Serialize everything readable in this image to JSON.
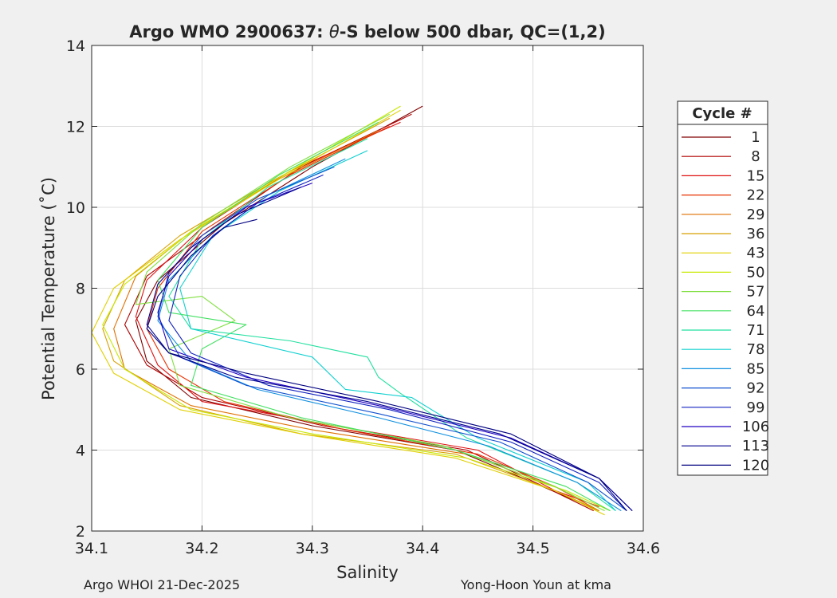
{
  "chart_data": {
    "type": "line",
    "title_prefix": "Argo WMO 2900637: ",
    "title_theta": "θ",
    "title_suffix": "-S below 500 dbar,  QC=(1,2)",
    "xlabel": "Salinity",
    "ylabel": "Potential Temperature (˚C)",
    "xlim": [
      34.1,
      34.6
    ],
    "ylim": [
      2,
      14
    ],
    "xticks": [
      "34.1",
      "34.2",
      "34.3",
      "34.4",
      "34.5",
      "34.6"
    ],
    "yticks": [
      "2",
      "4",
      "6",
      "8",
      "10",
      "12",
      "14"
    ],
    "grid": true,
    "legend": {
      "title": "Cycle #",
      "placement": "right",
      "entries": [
        "1",
        "8",
        "15",
        "22",
        "29",
        "36",
        "43",
        "50",
        "57",
        "64",
        "71",
        "78",
        "85",
        "92",
        "99",
        "106",
        "113",
        "120"
      ],
      "colors": [
        "#800000",
        "#b00000",
        "#e01010",
        "#e83000",
        "#e07000",
        "#d8a000",
        "#e0d000",
        "#c8e800",
        "#80e040",
        "#40e060",
        "#20e0a0",
        "#10d0d0",
        "#1090e0",
        "#1050d0",
        "#1020c0",
        "#2000c0",
        "#000090",
        "#000080"
      ]
    },
    "series": [
      {
        "name": "1",
        "points": [
          [
            34.4,
            12.5
          ],
          [
            34.3,
            11.0
          ],
          [
            34.22,
            9.6
          ],
          [
            34.16,
            8.2
          ],
          [
            34.14,
            7.2
          ],
          [
            34.15,
            6.2
          ],
          [
            34.19,
            5.3
          ],
          [
            34.3,
            4.6
          ],
          [
            34.43,
            4.0
          ],
          [
            34.5,
            3.2
          ],
          [
            34.56,
            2.5
          ]
        ]
      },
      {
        "name": "8",
        "points": [
          [
            34.39,
            12.3
          ],
          [
            34.29,
            11.0
          ],
          [
            34.21,
            9.5
          ],
          [
            34.15,
            8.3
          ],
          [
            34.13,
            7.1
          ],
          [
            34.15,
            6.1
          ],
          [
            34.2,
            5.3
          ],
          [
            34.31,
            4.6
          ],
          [
            34.44,
            4.0
          ],
          [
            34.51,
            3.1
          ],
          [
            34.555,
            2.5
          ]
        ]
      },
      {
        "name": "15",
        "points": [
          [
            34.38,
            12.1
          ],
          [
            34.28,
            10.9
          ],
          [
            34.2,
            9.5
          ],
          [
            34.15,
            8.2
          ],
          [
            34.14,
            7.3
          ],
          [
            34.16,
            6.1
          ],
          [
            34.2,
            5.2
          ],
          [
            34.32,
            4.6
          ],
          [
            34.45,
            4.0
          ],
          [
            34.52,
            3.0
          ],
          [
            34.56,
            2.6
          ]
        ]
      },
      {
        "name": "22",
        "points": [
          [
            34.37,
            12.0
          ],
          [
            34.28,
            10.8
          ],
          [
            34.2,
            9.4
          ],
          [
            34.16,
            8.0
          ],
          [
            34.15,
            7.0
          ],
          [
            34.17,
            6.0
          ],
          [
            34.22,
            5.2
          ],
          [
            34.33,
            4.5
          ],
          [
            34.45,
            3.9
          ],
          [
            34.52,
            3.1
          ],
          [
            34.56,
            2.5
          ]
        ]
      },
      {
        "name": "29",
        "points": [
          [
            34.36,
            11.9
          ],
          [
            34.27,
            10.7
          ],
          [
            34.19,
            9.4
          ],
          [
            34.14,
            8.3
          ],
          [
            34.12,
            7.0
          ],
          [
            34.13,
            6.0
          ],
          [
            34.19,
            5.1
          ],
          [
            34.3,
            4.5
          ],
          [
            34.44,
            3.9
          ],
          [
            34.52,
            3.1
          ],
          [
            34.56,
            2.5
          ]
        ]
      },
      {
        "name": "36",
        "points": [
          [
            34.37,
            12.2
          ],
          [
            34.26,
            10.6
          ],
          [
            34.18,
            9.3
          ],
          [
            34.13,
            8.2
          ],
          [
            34.11,
            7.0
          ],
          [
            34.12,
            6.2
          ],
          [
            34.18,
            5.1
          ],
          [
            34.29,
            4.4
          ],
          [
            34.43,
            3.9
          ],
          [
            34.52,
            3.0
          ],
          [
            34.56,
            2.5
          ]
        ]
      },
      {
        "name": "43",
        "points": [
          [
            34.38,
            12.4
          ],
          [
            34.27,
            10.7
          ],
          [
            34.18,
            9.2
          ],
          [
            34.12,
            8.0
          ],
          [
            34.1,
            6.9
          ],
          [
            34.12,
            5.9
          ],
          [
            34.18,
            5.0
          ],
          [
            34.29,
            4.4
          ],
          [
            34.43,
            3.8
          ],
          [
            34.52,
            3.0
          ],
          [
            34.565,
            2.4
          ]
        ]
      },
      {
        "name": "50",
        "points": [
          [
            34.38,
            12.5
          ],
          [
            34.28,
            10.9
          ],
          [
            34.19,
            9.4
          ],
          [
            34.13,
            8.1
          ],
          [
            34.11,
            7.1
          ],
          [
            34.13,
            6.0
          ],
          [
            34.19,
            5.0
          ],
          [
            34.3,
            4.4
          ],
          [
            34.44,
            3.8
          ],
          [
            34.53,
            3.0
          ],
          [
            34.57,
            2.5
          ]
        ]
      },
      {
        "name": "57",
        "points": [
          [
            34.37,
            12.3
          ],
          [
            34.28,
            11.0
          ],
          [
            34.2,
            9.6
          ],
          [
            34.15,
            8.4
          ],
          [
            34.14,
            7.6
          ],
          [
            34.2,
            7.8
          ],
          [
            34.23,
            7.2
          ],
          [
            34.17,
            6.5
          ],
          [
            34.18,
            5.6
          ],
          [
            34.28,
            4.8
          ],
          [
            34.42,
            4.1
          ],
          [
            34.52,
            3.1
          ],
          [
            34.565,
            2.5
          ]
        ]
      },
      {
        "name": "64",
        "points": [
          [
            34.36,
            12.1
          ],
          [
            34.27,
            10.8
          ],
          [
            34.2,
            9.5
          ],
          [
            34.16,
            8.2
          ],
          [
            34.17,
            7.4
          ],
          [
            34.24,
            7.1
          ],
          [
            34.2,
            6.5
          ],
          [
            34.19,
            5.6
          ],
          [
            34.29,
            4.8
          ],
          [
            34.43,
            4.0
          ],
          [
            34.53,
            3.1
          ],
          [
            34.57,
            2.5
          ]
        ]
      },
      {
        "name": "71",
        "points": [
          [
            34.35,
            11.7
          ],
          [
            34.26,
            10.5
          ],
          [
            34.2,
            9.2
          ],
          [
            34.17,
            7.8
          ],
          [
            34.19,
            7.0
          ],
          [
            34.28,
            6.7
          ],
          [
            34.35,
            6.3
          ],
          [
            34.36,
            5.8
          ],
          [
            34.38,
            5.4
          ],
          [
            34.44,
            4.3
          ],
          [
            34.54,
            3.2
          ],
          [
            34.575,
            2.5
          ]
        ]
      },
      {
        "name": "78",
        "points": [
          [
            34.35,
            11.4
          ],
          [
            34.27,
            10.4
          ],
          [
            34.21,
            9.3
          ],
          [
            34.18,
            8.0
          ],
          [
            34.19,
            7.0
          ],
          [
            34.3,
            6.3
          ],
          [
            34.33,
            5.5
          ],
          [
            34.39,
            5.3
          ],
          [
            34.45,
            4.3
          ],
          [
            34.55,
            3.2
          ],
          [
            34.575,
            2.5
          ]
        ]
      },
      {
        "name": "85",
        "points": [
          [
            34.33,
            11.2
          ],
          [
            34.26,
            10.3
          ],
          [
            34.21,
            9.3
          ],
          [
            34.17,
            8.2
          ],
          [
            34.16,
            7.2
          ],
          [
            34.19,
            6.2
          ],
          [
            34.25,
            5.5
          ],
          [
            34.36,
            4.8
          ],
          [
            34.46,
            4.1
          ],
          [
            34.54,
            3.2
          ],
          [
            34.58,
            2.5
          ]
        ]
      },
      {
        "name": "92",
        "points": [
          [
            34.32,
            11.0
          ],
          [
            34.25,
            10.2
          ],
          [
            34.2,
            9.3
          ],
          [
            34.17,
            8.4
          ],
          [
            34.16,
            7.3
          ],
          [
            34.18,
            6.3
          ],
          [
            34.24,
            5.6
          ],
          [
            34.36,
            4.9
          ],
          [
            34.47,
            4.2
          ],
          [
            34.55,
            3.2
          ],
          [
            34.585,
            2.5
          ]
        ]
      },
      {
        "name": "99",
        "points": [
          [
            34.31,
            10.8
          ],
          [
            34.25,
            10.1
          ],
          [
            34.21,
            9.3
          ],
          [
            34.18,
            8.3
          ],
          [
            34.17,
            7.2
          ],
          [
            34.19,
            6.4
          ],
          [
            34.26,
            5.6
          ],
          [
            34.37,
            5.0
          ],
          [
            34.48,
            4.2
          ],
          [
            34.56,
            3.2
          ],
          [
            34.585,
            2.5
          ]
        ]
      },
      {
        "name": "106",
        "points": [
          [
            34.3,
            10.6
          ],
          [
            34.24,
            10.0
          ],
          [
            34.2,
            9.2
          ],
          [
            34.17,
            8.3
          ],
          [
            34.16,
            7.4
          ],
          [
            34.17,
            6.5
          ],
          [
            34.24,
            5.8
          ],
          [
            34.36,
            5.1
          ],
          [
            34.48,
            4.3
          ],
          [
            34.56,
            3.3
          ],
          [
            34.59,
            2.5
          ]
        ]
      },
      {
        "name": "113",
        "points": [
          [
            34.29,
            10.5
          ],
          [
            34.23,
            9.8
          ],
          [
            34.19,
            9.0
          ],
          [
            34.16,
            8.1
          ],
          [
            34.15,
            7.1
          ],
          [
            34.17,
            6.4
          ],
          [
            34.23,
            5.8
          ],
          [
            34.35,
            5.2
          ],
          [
            34.47,
            4.4
          ],
          [
            34.56,
            3.3
          ],
          [
            34.59,
            2.5
          ]
        ]
      },
      {
        "name": "120",
        "points": [
          [
            34.25,
            9.7
          ],
          [
            34.22,
            9.5
          ],
          [
            34.19,
            8.8
          ],
          [
            34.16,
            7.8
          ],
          [
            34.15,
            7.0
          ],
          [
            34.17,
            6.4
          ],
          [
            34.24,
            5.9
          ],
          [
            34.36,
            5.2
          ],
          [
            34.48,
            4.4
          ],
          [
            34.56,
            3.3
          ],
          [
            34.585,
            2.5
          ]
        ]
      }
    ]
  },
  "footer": {
    "left": "Argo WHOI 21-Dec-2025",
    "right": "Yong-Hoon Youn at kma"
  }
}
